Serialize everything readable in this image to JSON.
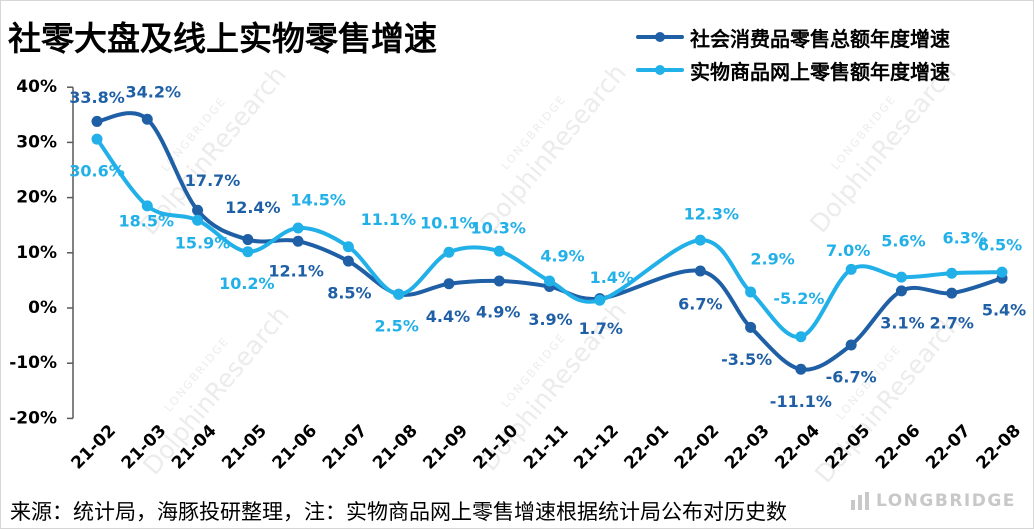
{
  "chart_data": {
    "type": "line",
    "title": "社零大盘及线上实物零售增速",
    "categories": [
      "21-02",
      "21-03",
      "21-04",
      "21-05",
      "21-06",
      "21-07",
      "21-08",
      "21-09",
      "21-10",
      "21-11",
      "21-12",
      "22-01",
      "22-02",
      "22-03",
      "22-04",
      "22-05",
      "22-06",
      "22-07",
      "22-08"
    ],
    "ylim": [
      -20,
      40
    ],
    "y_ticks": [
      "40%",
      "30%",
      "20%",
      "10%",
      "0%",
      "-10%",
      "-20%"
    ],
    "grid": false,
    "smooth": true,
    "legend_position": "top-right",
    "series": [
      {
        "name": "社会消费品零售总额年度增速",
        "color": "#1f5fa6",
        "values": [
          33.8,
          34.2,
          17.7,
          12.4,
          12.1,
          8.5,
          2.5,
          4.4,
          4.9,
          3.9,
          1.7,
          null,
          6.7,
          -3.5,
          -11.1,
          -6.7,
          3.1,
          2.7,
          5.4
        ],
        "labels": [
          "33.8%",
          "34.2%",
          "17.7%",
          "12.4%",
          "12.1%",
          "8.5%",
          null,
          "4.4%",
          "4.9%",
          "3.9%",
          "1.7%",
          null,
          "6.7%",
          "-3.5%",
          "-11.1%",
          "-6.7%",
          "3.1%",
          "2.7%",
          "5.4%"
        ]
      },
      {
        "name": "实物商品网上零售额年度增速",
        "color": "#22b0e8",
        "values": [
          30.6,
          18.5,
          15.9,
          10.2,
          14.5,
          11.1,
          2.5,
          10.1,
          10.3,
          4.9,
          1.4,
          null,
          12.3,
          2.9,
          -5.2,
          7.0,
          5.6,
          6.3,
          6.5
        ],
        "labels": [
          "30.6%",
          "18.5%",
          "15.9%",
          "10.2%",
          "14.5%",
          "11.1%",
          "2.5%",
          "10.1%",
          "10.3%",
          "4.9%",
          "1.4%",
          null,
          "12.3%",
          "2.9%",
          "-5.2%",
          "7.0%",
          "5.6%",
          "6.3%",
          "6.5%"
        ]
      }
    ]
  },
  "source_note": "来源：统计局，海豚投研整理，注：实物商品网上零售增速根据统计局公布对历史数",
  "watermark": {
    "brand": "LONGBRIDGE",
    "name": "DolphinResearch"
  },
  "logo": {
    "brand": "LONGBRIDGE",
    "icon": "longbridge-logo-icon",
    "color": "#c8c8c8"
  }
}
